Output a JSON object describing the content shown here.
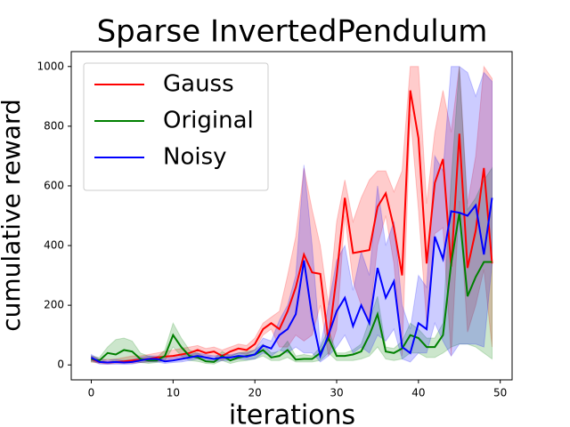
{
  "chart_data": {
    "type": "line",
    "title": "Sparse InvertedPendulum",
    "x_label": "iterations",
    "y_label": "cumulative reward",
    "x": [
      0,
      1,
      2,
      3,
      4,
      5,
      6,
      7,
      8,
      9,
      10,
      11,
      12,
      13,
      14,
      15,
      16,
      17,
      18,
      19,
      20,
      21,
      22,
      23,
      24,
      25,
      26,
      27,
      28,
      29,
      30,
      31,
      32,
      33,
      34,
      35,
      36,
      37,
      38,
      39,
      40,
      41,
      42,
      43,
      44,
      45,
      46,
      47,
      48,
      49
    ],
    "xlim": [
      -2.45,
      51.45
    ],
    "xticks": [
      0,
      10,
      20,
      30,
      40,
      50
    ],
    "ylim": [
      -50,
      1050
    ],
    "yticks": [
      0,
      200,
      400,
      600,
      800,
      1000
    ],
    "legend": "upper left",
    "band_opacity": 0.2,
    "series": [
      {
        "name": "Gauss",
        "color": "#ff0000",
        "values": [
          20,
          10,
          8,
          10,
          12,
          15,
          18,
          20,
          25,
          28,
          30,
          35,
          40,
          50,
          40,
          45,
          30,
          45,
          55,
          50,
          70,
          120,
          140,
          120,
          180,
          260,
          370,
          310,
          305,
          80,
          300,
          560,
          375,
          380,
          385,
          530,
          575,
          460,
          300,
          920,
          760,
          340,
          610,
          690,
          330,
          775,
          325,
          450,
          660,
          340
        ],
        "upper": [
          30,
          20,
          18,
          20,
          25,
          30,
          30,
          35,
          40,
          45,
          50,
          55,
          60,
          65,
          55,
          60,
          50,
          60,
          70,
          65,
          90,
          140,
          160,
          180,
          300,
          430,
          660,
          520,
          400,
          200,
          480,
          620,
          480,
          560,
          620,
          650,
          650,
          580,
          650,
          1000,
          1000,
          540,
          780,
          920,
          780,
          1000,
          540,
          700,
          1000,
          960
        ],
        "lower": [
          10,
          5,
          3,
          5,
          5,
          5,
          8,
          10,
          12,
          15,
          15,
          20,
          25,
          35,
          25,
          30,
          15,
          30,
          40,
          35,
          50,
          100,
          120,
          60,
          60,
          100,
          80,
          100,
          200,
          30,
          120,
          500,
          280,
          200,
          150,
          400,
          500,
          340,
          30,
          840,
          520,
          140,
          440,
          460,
          30,
          550,
          110,
          200,
          320,
          60
        ]
      },
      {
        "name": "Original",
        "color": "#008000",
        "values": [
          20,
          15,
          40,
          35,
          50,
          45,
          20,
          15,
          15,
          30,
          100,
          60,
          30,
          25,
          12,
          10,
          30,
          15,
          25,
          30,
          35,
          50,
          25,
          30,
          50,
          18,
          20,
          20,
          40,
          90,
          30,
          30,
          35,
          45,
          100,
          170,
          45,
          40,
          55,
          100,
          90,
          60,
          60,
          100,
          340,
          510,
          230,
          295,
          345,
          345
        ],
        "upper": [
          30,
          25,
          60,
          85,
          90,
          80,
          40,
          30,
          25,
          50,
          140,
          90,
          50,
          40,
          25,
          20,
          45,
          30,
          40,
          45,
          50,
          70,
          40,
          45,
          80,
          30,
          35,
          30,
          60,
          120,
          40,
          40,
          50,
          70,
          150,
          230,
          60,
          55,
          80,
          140,
          120,
          90,
          90,
          140,
          620,
          1000,
          520,
          560,
          620,
          660
        ],
        "lower": [
          10,
          8,
          20,
          10,
          15,
          15,
          8,
          5,
          8,
          15,
          60,
          30,
          15,
          12,
          5,
          3,
          15,
          5,
          12,
          15,
          20,
          30,
          15,
          15,
          25,
          10,
          10,
          10,
          15,
          40,
          15,
          15,
          15,
          20,
          30,
          60,
          20,
          15,
          20,
          40,
          40,
          25,
          25,
          40,
          60,
          70,
          70,
          60,
          40,
          20
        ]
      },
      {
        "name": "Noisy",
        "color": "#0000ff",
        "values": [
          25,
          10,
          8,
          10,
          8,
          10,
          15,
          20,
          20,
          12,
          15,
          20,
          25,
          30,
          25,
          20,
          25,
          25,
          30,
          28,
          35,
          65,
          55,
          100,
          120,
          170,
          350,
          160,
          30,
          100,
          180,
          225,
          130,
          200,
          140,
          325,
          225,
          280,
          60,
          40,
          140,
          120,
          430,
          355,
          515,
          510,
          500,
          535,
          370,
          560
        ],
        "upper": [
          35,
          18,
          15,
          18,
          15,
          18,
          25,
          30,
          30,
          22,
          25,
          30,
          35,
          40,
          35,
          30,
          35,
          35,
          40,
          40,
          50,
          90,
          80,
          150,
          200,
          300,
          670,
          400,
          60,
          200,
          350,
          400,
          250,
          380,
          300,
          600,
          400,
          480,
          200,
          120,
          300,
          260,
          700,
          650,
          1000,
          1000,
          980,
          900,
          980,
          950
        ],
        "lower": [
          15,
          3,
          2,
          3,
          2,
          3,
          8,
          10,
          10,
          5,
          8,
          10,
          15,
          20,
          15,
          10,
          15,
          15,
          20,
          18,
          20,
          40,
          30,
          50,
          40,
          60,
          40,
          40,
          10,
          30,
          60,
          100,
          40,
          60,
          40,
          100,
          80,
          120,
          20,
          10,
          40,
          40,
          140,
          80,
          30,
          70,
          70,
          70,
          60,
          340
        ]
      }
    ]
  }
}
